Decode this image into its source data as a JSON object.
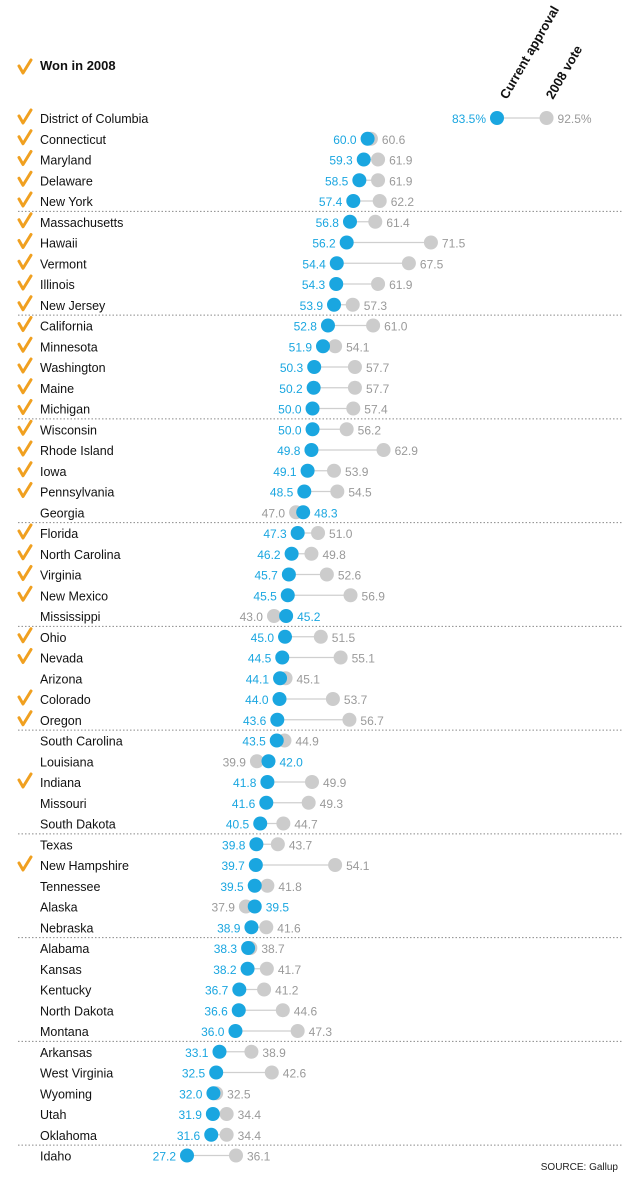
{
  "legend": {
    "won_label": "Won in 2008"
  },
  "column_headers": {
    "current": "Current approval",
    "vote2008": "2008 vote"
  },
  "source": "SOURCE: Gallup",
  "colors": {
    "current": "#1aa6e0",
    "vote2008": "#cccccc",
    "check": "#f0a020",
    "connector": "#cfcfcf",
    "label_current": "#1aa6e0",
    "label_vote": "#9a9a9a"
  },
  "chart_data": {
    "type": "dot-plot",
    "series": [
      {
        "name": "Current approval"
      },
      {
        "name": "2008 vote"
      }
    ],
    "rows": [
      {
        "state": "District of Columbia",
        "current": 83.5,
        "vote2008": 92.5,
        "won": true,
        "current_label": "83.5%",
        "vote_label": "92.5%"
      },
      {
        "state": "Connecticut",
        "current": 60.0,
        "vote2008": 60.6,
        "won": true,
        "current_label": "60.0",
        "vote_label": "60.6"
      },
      {
        "state": "Maryland",
        "current": 59.3,
        "vote2008": 61.9,
        "won": true,
        "current_label": "59.3",
        "vote_label": "61.9"
      },
      {
        "state": "Delaware",
        "current": 58.5,
        "vote2008": 61.9,
        "won": true,
        "current_label": "58.5",
        "vote_label": "61.9"
      },
      {
        "state": "New York",
        "current": 57.4,
        "vote2008": 62.2,
        "won": true,
        "current_label": "57.4",
        "vote_label": "62.2"
      },
      {
        "state": "Massachusetts",
        "current": 56.8,
        "vote2008": 61.4,
        "won": true,
        "current_label": "56.8",
        "vote_label": "61.4"
      },
      {
        "state": "Hawaii",
        "current": 56.2,
        "vote2008": 71.5,
        "won": true,
        "current_label": "56.2",
        "vote_label": "71.5"
      },
      {
        "state": "Vermont",
        "current": 54.4,
        "vote2008": 67.5,
        "won": true,
        "current_label": "54.4",
        "vote_label": "67.5"
      },
      {
        "state": "Illinois",
        "current": 54.3,
        "vote2008": 61.9,
        "won": true,
        "current_label": "54.3",
        "vote_label": "61.9"
      },
      {
        "state": "New Jersey",
        "current": 53.9,
        "vote2008": 57.3,
        "won": true,
        "current_label": "53.9",
        "vote_label": "57.3"
      },
      {
        "state": "California",
        "current": 52.8,
        "vote2008": 61.0,
        "won": true,
        "current_label": "52.8",
        "vote_label": "61.0"
      },
      {
        "state": "Minnesota",
        "current": 51.9,
        "vote2008": 54.1,
        "won": true,
        "current_label": "51.9",
        "vote_label": "54.1"
      },
      {
        "state": "Washington",
        "current": 50.3,
        "vote2008": 57.7,
        "won": true,
        "current_label": "50.3",
        "vote_label": "57.7"
      },
      {
        "state": "Maine",
        "current": 50.2,
        "vote2008": 57.7,
        "won": true,
        "current_label": "50.2",
        "vote_label": "57.7"
      },
      {
        "state": "Michigan",
        "current": 50.0,
        "vote2008": 57.4,
        "won": true,
        "current_label": "50.0",
        "vote_label": "57.4"
      },
      {
        "state": "Wisconsin",
        "current": 50.0,
        "vote2008": 56.2,
        "won": true,
        "current_label": "50.0",
        "vote_label": "56.2"
      },
      {
        "state": "Rhode Island",
        "current": 49.8,
        "vote2008": 62.9,
        "won": true,
        "current_label": "49.8",
        "vote_label": "62.9"
      },
      {
        "state": "Iowa",
        "current": 49.1,
        "vote2008": 53.9,
        "won": true,
        "current_label": "49.1",
        "vote_label": "53.9"
      },
      {
        "state": "Pennsylvania",
        "current": 48.5,
        "vote2008": 54.5,
        "won": true,
        "current_label": "48.5",
        "vote_label": "54.5"
      },
      {
        "state": "Georgia",
        "current": 48.3,
        "vote2008": 47.0,
        "won": false,
        "current_label": "48.3",
        "vote_label": "47.0"
      },
      {
        "state": "Florida",
        "current": 47.3,
        "vote2008": 51.0,
        "won": true,
        "current_label": "47.3",
        "vote_label": "51.0"
      },
      {
        "state": "North Carolina",
        "current": 46.2,
        "vote2008": 49.8,
        "won": true,
        "current_label": "46.2",
        "vote_label": "49.8"
      },
      {
        "state": "Virginia",
        "current": 45.7,
        "vote2008": 52.6,
        "won": true,
        "current_label": "45.7",
        "vote_label": "52.6"
      },
      {
        "state": "New Mexico",
        "current": 45.5,
        "vote2008": 56.9,
        "won": true,
        "current_label": "45.5",
        "vote_label": "56.9"
      },
      {
        "state": "Mississippi",
        "current": 45.2,
        "vote2008": 43.0,
        "won": false,
        "current_label": "45.2",
        "vote_label": "43.0"
      },
      {
        "state": "Ohio",
        "current": 45.0,
        "vote2008": 51.5,
        "won": true,
        "current_label": "45.0",
        "vote_label": "51.5"
      },
      {
        "state": "Nevada",
        "current": 44.5,
        "vote2008": 55.1,
        "won": true,
        "current_label": "44.5",
        "vote_label": "55.1"
      },
      {
        "state": "Arizona",
        "current": 44.1,
        "vote2008": 45.1,
        "won": false,
        "current_label": "44.1",
        "vote_label": "45.1"
      },
      {
        "state": "Colorado",
        "current": 44.0,
        "vote2008": 53.7,
        "won": true,
        "current_label": "44.0",
        "vote_label": "53.7"
      },
      {
        "state": "Oregon",
        "current": 43.6,
        "vote2008": 56.7,
        "won": true,
        "current_label": "43.6",
        "vote_label": "56.7"
      },
      {
        "state": "South Carolina",
        "current": 43.5,
        "vote2008": 44.9,
        "won": false,
        "current_label": "43.5",
        "vote_label": "44.9"
      },
      {
        "state": "Louisiana",
        "current": 42.0,
        "vote2008": 39.9,
        "won": false,
        "current_label": "42.0",
        "vote_label": "39.9"
      },
      {
        "state": "Indiana",
        "current": 41.8,
        "vote2008": 49.9,
        "won": true,
        "current_label": "41.8",
        "vote_label": "49.9"
      },
      {
        "state": "Missouri",
        "current": 41.6,
        "vote2008": 49.3,
        "won": false,
        "current_label": "41.6",
        "vote_label": "49.3"
      },
      {
        "state": "South Dakota",
        "current": 40.5,
        "vote2008": 44.7,
        "won": false,
        "current_label": "40.5",
        "vote_label": "44.7"
      },
      {
        "state": "Texas",
        "current": 39.8,
        "vote2008": 43.7,
        "won": false,
        "current_label": "39.8",
        "vote_label": "43.7"
      },
      {
        "state": "New Hampshire",
        "current": 39.7,
        "vote2008": 54.1,
        "won": true,
        "current_label": "39.7",
        "vote_label": "54.1"
      },
      {
        "state": "Tennessee",
        "current": 39.5,
        "vote2008": 41.8,
        "won": false,
        "current_label": "39.5",
        "vote_label": "41.8"
      },
      {
        "state": "Alaska",
        "current": 39.5,
        "vote2008": 37.9,
        "won": false,
        "current_label": "39.5",
        "vote_label": "37.9"
      },
      {
        "state": "Nebraska",
        "current": 38.9,
        "vote2008": 41.6,
        "won": false,
        "current_label": "38.9",
        "vote_label": "41.6"
      },
      {
        "state": "Alabama",
        "current": 38.3,
        "vote2008": 38.7,
        "won": false,
        "current_label": "38.3",
        "vote_label": "38.7"
      },
      {
        "state": "Kansas",
        "current": 38.2,
        "vote2008": 41.7,
        "won": false,
        "current_label": "38.2",
        "vote_label": "41.7"
      },
      {
        "state": "Kentucky",
        "current": 36.7,
        "vote2008": 41.2,
        "won": false,
        "current_label": "36.7",
        "vote_label": "41.2"
      },
      {
        "state": "North Dakota",
        "current": 36.6,
        "vote2008": 44.6,
        "won": false,
        "current_label": "36.6",
        "vote_label": "44.6"
      },
      {
        "state": "Montana",
        "current": 36.0,
        "vote2008": 47.3,
        "won": false,
        "current_label": "36.0",
        "vote_label": "47.3"
      },
      {
        "state": "Arkansas",
        "current": 33.1,
        "vote2008": 38.9,
        "won": false,
        "current_label": "33.1",
        "vote_label": "38.9"
      },
      {
        "state": "West Virginia",
        "current": 32.5,
        "vote2008": 42.6,
        "won": false,
        "current_label": "32.5",
        "vote_label": "42.6"
      },
      {
        "state": "Wyoming",
        "current": 32.0,
        "vote2008": 32.5,
        "won": false,
        "current_label": "32.0",
        "vote_label": "32.5"
      },
      {
        "state": "Utah",
        "current": 31.9,
        "vote2008": 34.4,
        "won": false,
        "current_label": "31.9",
        "vote_label": "34.4"
      },
      {
        "state": "Oklahoma",
        "current": 31.6,
        "vote2008": 34.4,
        "won": false,
        "current_label": "31.6",
        "vote_label": "34.4"
      },
      {
        "state": "Idaho",
        "current": 27.2,
        "vote2008": 36.1,
        "won": false,
        "current_label": "27.2",
        "vote_label": "36.1"
      }
    ]
  }
}
